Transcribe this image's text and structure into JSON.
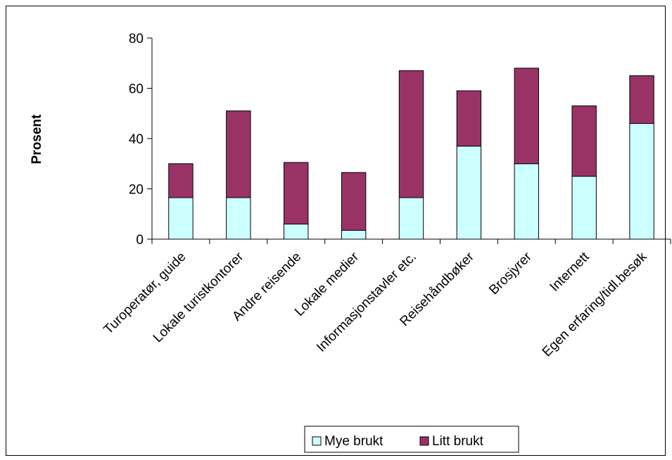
{
  "chart_data": {
    "type": "bar",
    "stacked": true,
    "categories": [
      "Turoperatør, guide",
      "Lokale turistkontorer",
      "Andre reisende",
      "Lokale medier",
      "Informasjonstavler etc.",
      "Reisehåndbøker",
      "Brosjyrer",
      "Internett",
      "Egen erfaring/tidl.besøk"
    ],
    "series": [
      {
        "name": "Mye brukt",
        "color": "#ccffff",
        "values": [
          16.5,
          16.5,
          6,
          3.5,
          16.5,
          37,
          30,
          25,
          46
        ]
      },
      {
        "name": "Litt brukt",
        "color": "#993366",
        "values": [
          13.5,
          34.5,
          24.5,
          23,
          50.5,
          22,
          38,
          28,
          19
        ]
      }
    ],
    "ylabel": "Prosent",
    "ylim": [
      0,
      80
    ],
    "yticks": [
      0,
      20,
      40,
      60,
      80
    ],
    "grid": false,
    "legend": "bottom"
  }
}
